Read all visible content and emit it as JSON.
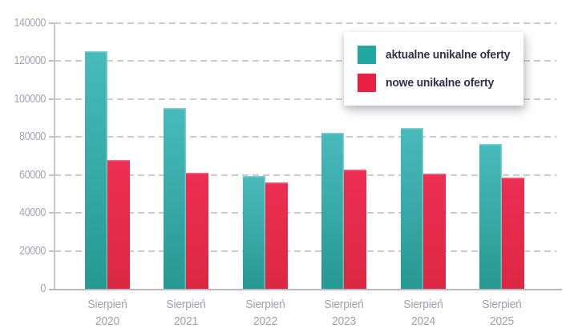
{
  "chart_data": {
    "type": "bar",
    "title": "",
    "xlabel": "",
    "ylabel": "",
    "categories": [
      "Sierpień 2020",
      "Sierpień 2021",
      "Sierpień 2022",
      "Sierpień 2023",
      "Sierpień 2024",
      "Sierpień 2025"
    ],
    "categories_lines": [
      [
        "Sierpień",
        "2020"
      ],
      [
        "Sierpień",
        "2021"
      ],
      [
        "Sierpień",
        "2022"
      ],
      [
        "Sierpień",
        "2023"
      ],
      [
        "Sierpień",
        "2024"
      ],
      [
        "Sierpień",
        "2025"
      ]
    ],
    "series": [
      {
        "name": "aktualne unikalne oferty",
        "values": [
          125400,
          95400,
          59300,
          82100,
          84800,
          76200
        ],
        "color_top": "#49babc",
        "color_bottom": "#269992",
        "swatch": "#22a8a0"
      },
      {
        "name": "nowe unikalne oferty",
        "values": [
          68000,
          61200,
          55900,
          63000,
          60600,
          58500
        ],
        "color_top": "#ec2e52",
        "color_bottom": "#dc2843",
        "swatch": "#e82044"
      }
    ],
    "ylim": [
      0,
      140000
    ],
    "ytick_step": 20000,
    "yticks": [
      "0",
      "20000",
      "40000",
      "60000",
      "80000",
      "100000",
      "120000",
      "140000"
    ],
    "grid": "horizontal-dashed",
    "legend_position": "top-right"
  },
  "colors": {
    "background": "#ffffff",
    "gridline": "#cbcbcf",
    "axis_line": "#b9b9c1",
    "ytick_label": "#a6a6b6",
    "xtick_label": "#a0a0b0",
    "legend_text": "#32324d"
  }
}
